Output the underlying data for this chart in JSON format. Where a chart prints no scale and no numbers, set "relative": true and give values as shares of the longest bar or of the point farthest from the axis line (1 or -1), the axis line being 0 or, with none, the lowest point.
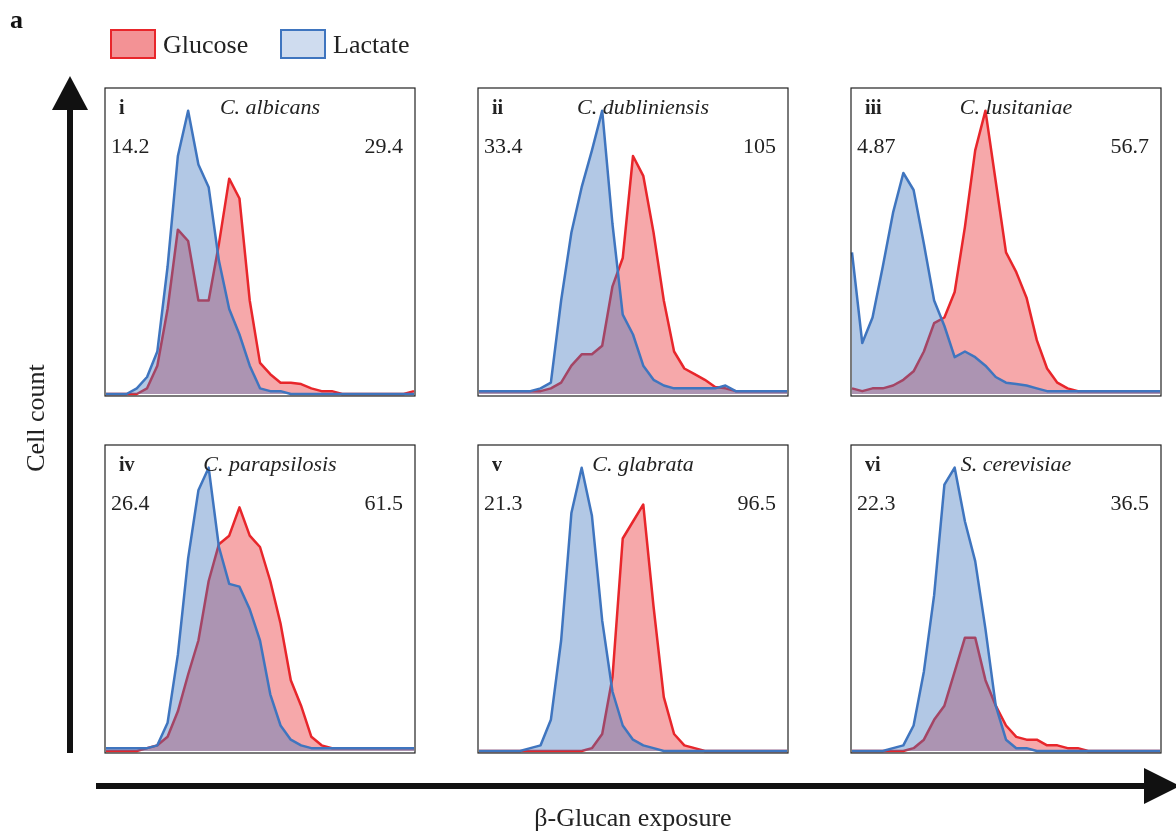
{
  "chart_data": [
    {
      "type": "area",
      "title": "C. albicans",
      "relative": true,
      "legend": "top",
      "xlabel": "β-Glucan exposure",
      "ylabel": "Cell count",
      "annotations": [
        "i",
        "14.2",
        "29.4",
        "a"
      ],
      "categories": [
        null,
        null,
        null,
        null,
        null,
        null,
        null,
        null,
        null,
        null,
        null,
        null,
        null,
        null,
        null,
        null,
        null,
        null,
        null,
        null,
        null,
        null,
        null,
        null,
        null,
        null,
        null,
        null,
        null,
        null,
        null
      ],
      "series": [
        {
          "name": "Glucose",
          "color": "#e8262b",
          "values": [
            0,
            0,
            0,
            0,
            0.02,
            0.1,
            0.3,
            0.58,
            0.54,
            0.33,
            0.33,
            0.53,
            0.76,
            0.69,
            0.33,
            0.11,
            0.07,
            0.04,
            0.04,
            0.035,
            0.02,
            0.01,
            0.01,
            0,
            0,
            0,
            0,
            0,
            0,
            0,
            0.01
          ]
        },
        {
          "name": "Lactate",
          "color": "#3f75bf",
          "values": [
            0,
            0,
            0,
            0.02,
            0.06,
            0.15,
            0.45,
            0.84,
            1,
            0.81,
            0.73,
            0.47,
            0.3,
            0.21,
            0.1,
            0.02,
            0.01,
            0.01,
            0,
            0,
            0,
            0,
            0,
            0,
            0,
            0,
            0,
            0,
            0,
            0,
            0
          ]
        }
      ]
    },
    {
      "type": "area",
      "title": "C. dubliniensis",
      "relative": true,
      "annotations": [
        "ii",
        "33.4",
        "105"
      ],
      "categories": [
        null,
        null,
        null,
        null,
        null,
        null,
        null,
        null,
        null,
        null,
        null,
        null,
        null,
        null,
        null,
        null,
        null,
        null,
        null,
        null,
        null,
        null,
        null,
        null,
        null,
        null,
        null,
        null,
        null,
        null,
        null
      ],
      "series": [
        {
          "color": "#e8262b",
          "values": [
            0.01,
            0.01,
            0.01,
            0.01,
            0.01,
            0.01,
            0.01,
            0.02,
            0.04,
            0.1,
            0.14,
            0.14,
            0.17,
            0.38,
            0.48,
            0.84,
            0.77,
            0.57,
            0.33,
            0.15,
            0.09,
            0.07,
            0.05,
            0.025,
            0.02,
            0.01,
            0.01,
            0.01,
            0.01,
            0.01,
            0.01
          ]
        },
        {
          "color": "#3f75bf",
          "values": [
            0.01,
            0.01,
            0.01,
            0.01,
            0.01,
            0.01,
            0.02,
            0.04,
            0.33,
            0.57,
            0.73,
            0.86,
            1,
            0.6,
            0.28,
            0.21,
            0.1,
            0.05,
            0.03,
            0.02,
            0.02,
            0.02,
            0.02,
            0.02,
            0.03,
            0.01,
            0.01,
            0.01,
            0.01,
            0.01,
            0.01
          ]
        }
      ]
    },
    {
      "type": "area",
      "title": "C. lusitaniae",
      "relative": true,
      "annotations": [
        "iii",
        "4.87",
        "56.7"
      ],
      "categories": [
        null,
        null,
        null,
        null,
        null,
        null,
        null,
        null,
        null,
        null,
        null,
        null,
        null,
        null,
        null,
        null,
        null,
        null,
        null,
        null,
        null,
        null,
        null,
        null,
        null,
        null,
        null,
        null,
        null,
        null,
        null
      ],
      "series": [
        {
          "color": "#e8262b",
          "values": [
            0.02,
            0.01,
            0.02,
            0.02,
            0.03,
            0.05,
            0.08,
            0.15,
            0.25,
            0.27,
            0.36,
            0.59,
            0.86,
            1,
            0.75,
            0.5,
            0.43,
            0.34,
            0.19,
            0.09,
            0.04,
            0.02,
            0.01,
            0.01,
            0.01,
            0.01,
            0.01,
            0.01,
            0.01,
            0.01,
            0.01
          ]
        },
        {
          "color": "#3f75bf",
          "values": [
            0.5,
            0.18,
            0.27,
            0.45,
            0.64,
            0.78,
            0.72,
            0.53,
            0.33,
            0.24,
            0.13,
            0.15,
            0.13,
            0.1,
            0.06,
            0.04,
            0.035,
            0.03,
            0.02,
            0.01,
            0.01,
            0.01,
            0.01,
            0.01,
            0.01,
            0.01,
            0.01,
            0.01,
            0.01,
            0.01,
            0.01
          ]
        }
      ]
    },
    {
      "type": "area",
      "title": "C. parapsilosis",
      "relative": true,
      "annotations": [
        "iv",
        "26.4",
        "61.5"
      ],
      "categories": [
        null,
        null,
        null,
        null,
        null,
        null,
        null,
        null,
        null,
        null,
        null,
        null,
        null,
        null,
        null,
        null,
        null,
        null,
        null,
        null,
        null,
        null,
        null,
        null,
        null,
        null,
        null,
        null,
        null,
        null,
        null
      ],
      "series": [
        {
          "color": "#e8262b",
          "values": [
            0,
            0,
            0,
            0,
            0.01,
            0.02,
            0.05,
            0.14,
            0.27,
            0.39,
            0.6,
            0.73,
            0.76,
            0.86,
            0.76,
            0.72,
            0.6,
            0.45,
            0.25,
            0.16,
            0.05,
            0.02,
            0.01,
            0.01,
            0.01,
            0.01,
            0.01,
            0.01,
            0.01,
            0.01,
            0.01
          ]
        },
        {
          "color": "#3f75bf",
          "values": [
            0.01,
            0.01,
            0.01,
            0.01,
            0.01,
            0.02,
            0.1,
            0.34,
            0.68,
            0.92,
            1,
            0.72,
            0.59,
            0.58,
            0.5,
            0.39,
            0.2,
            0.09,
            0.04,
            0.02,
            0.01,
            0.01,
            0.01,
            0.01,
            0.01,
            0.01,
            0.01,
            0.01,
            0.01,
            0.01,
            0.01
          ]
        }
      ]
    },
    {
      "type": "area",
      "title": "C. glabrata",
      "relative": true,
      "annotations": [
        "v",
        "21.3",
        "96.5"
      ],
      "categories": [
        null,
        null,
        null,
        null,
        null,
        null,
        null,
        null,
        null,
        null,
        null,
        null,
        null,
        null,
        null,
        null,
        null,
        null,
        null,
        null,
        null,
        null,
        null,
        null,
        null,
        null,
        null,
        null,
        null,
        null,
        null
      ],
      "series": [
        {
          "color": "#e8262b",
          "values": [
            0,
            0,
            0,
            0,
            0,
            0,
            0,
            0,
            0,
            0,
            0,
            0.01,
            0.06,
            0.26,
            0.75,
            0.81,
            0.87,
            0.51,
            0.19,
            0.06,
            0.02,
            0.01,
            0,
            0,
            0,
            0,
            0,
            0,
            0,
            0,
            0
          ]
        },
        {
          "color": "#3f75bf",
          "values": [
            0,
            0,
            0,
            0,
            0,
            0.01,
            0.02,
            0.11,
            0.39,
            0.84,
            1,
            0.83,
            0.46,
            0.21,
            0.09,
            0.04,
            0.02,
            0.01,
            0,
            0,
            0,
            0,
            0,
            0,
            0,
            0,
            0,
            0,
            0,
            0,
            0
          ]
        }
      ]
    },
    {
      "type": "area",
      "title": "S. cerevisiae",
      "relative": true,
      "annotations": [
        "vi",
        "22.3",
        "36.5"
      ],
      "categories": [
        null,
        null,
        null,
        null,
        null,
        null,
        null,
        null,
        null,
        null,
        null,
        null,
        null,
        null,
        null,
        null,
        null,
        null,
        null,
        null,
        null,
        null,
        null,
        null,
        null,
        null,
        null,
        null,
        null,
        null,
        null
      ],
      "series": [
        {
          "color": "#e8262b",
          "values": [
            0,
            0,
            0,
            0,
            0,
            0,
            0.01,
            0.04,
            0.11,
            0.16,
            0.28,
            0.4,
            0.4,
            0.25,
            0.16,
            0.09,
            0.05,
            0.04,
            0.04,
            0.02,
            0.02,
            0.01,
            0.01,
            0,
            0,
            0,
            0,
            0,
            0,
            0,
            0
          ]
        },
        {
          "color": "#3f75bf",
          "values": [
            0,
            0,
            0,
            0,
            0.01,
            0.02,
            0.09,
            0.28,
            0.55,
            0.94,
            1,
            0.81,
            0.67,
            0.43,
            0.16,
            0.04,
            0.01,
            0.01,
            0,
            0,
            0,
            0,
            0,
            0,
            0,
            0,
            0,
            0,
            0,
            0,
            0
          ]
        }
      ]
    }
  ]
}
